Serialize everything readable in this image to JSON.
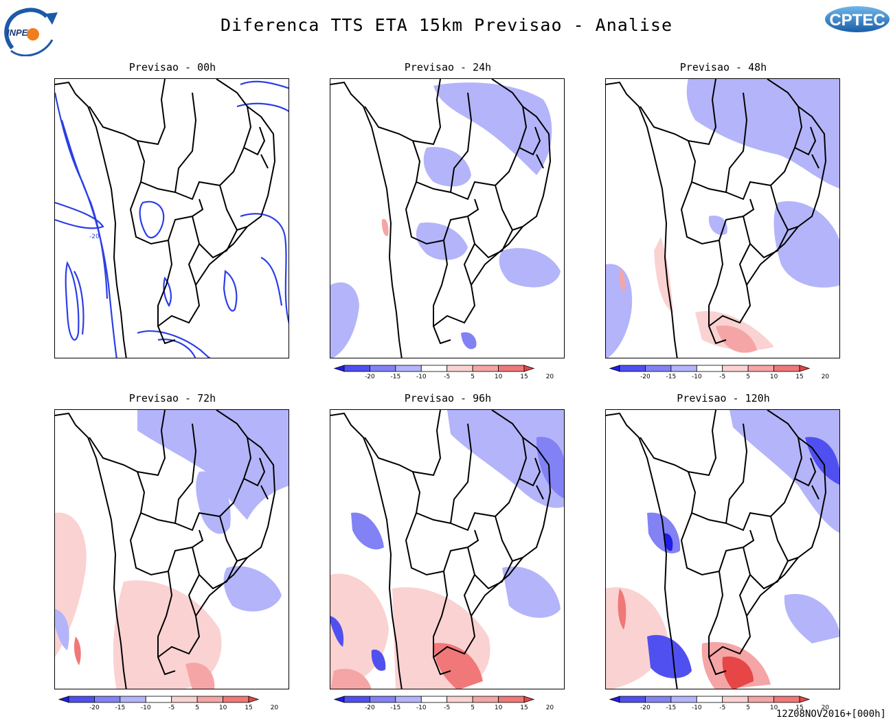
{
  "header": {
    "title": "Diferenca TTS ETA 15km Previsao - Analise",
    "left_logo_text": "INPE",
    "right_logo_text": "CPTEC"
  },
  "panels": [
    {
      "title": "Previsao - 00h",
      "type": "contour"
    },
    {
      "title": "Previsao - 24h",
      "type": "shaded"
    },
    {
      "title": "Previsao - 48h",
      "type": "shaded"
    },
    {
      "title": "Previsao - 72h",
      "type": "shaded"
    },
    {
      "title": "Previsao - 96h",
      "type": "shaded"
    },
    {
      "title": "Previsao - 120h",
      "type": "shaded"
    }
  ],
  "colorbar": {
    "labels": [
      "-20",
      "-15",
      "-10",
      "-5",
      "5",
      "10",
      "15",
      "20"
    ],
    "colors": [
      "#1e1ee6",
      "#5050f0",
      "#8282f5",
      "#b4b4fa",
      "#ffffff",
      "#fad2d2",
      "#f5a5a5",
      "#f07878",
      "#e64646"
    ]
  },
  "contour_label": "-20",
  "footer": {
    "timestamp": "12Z08NOV2016+[000h]"
  }
}
